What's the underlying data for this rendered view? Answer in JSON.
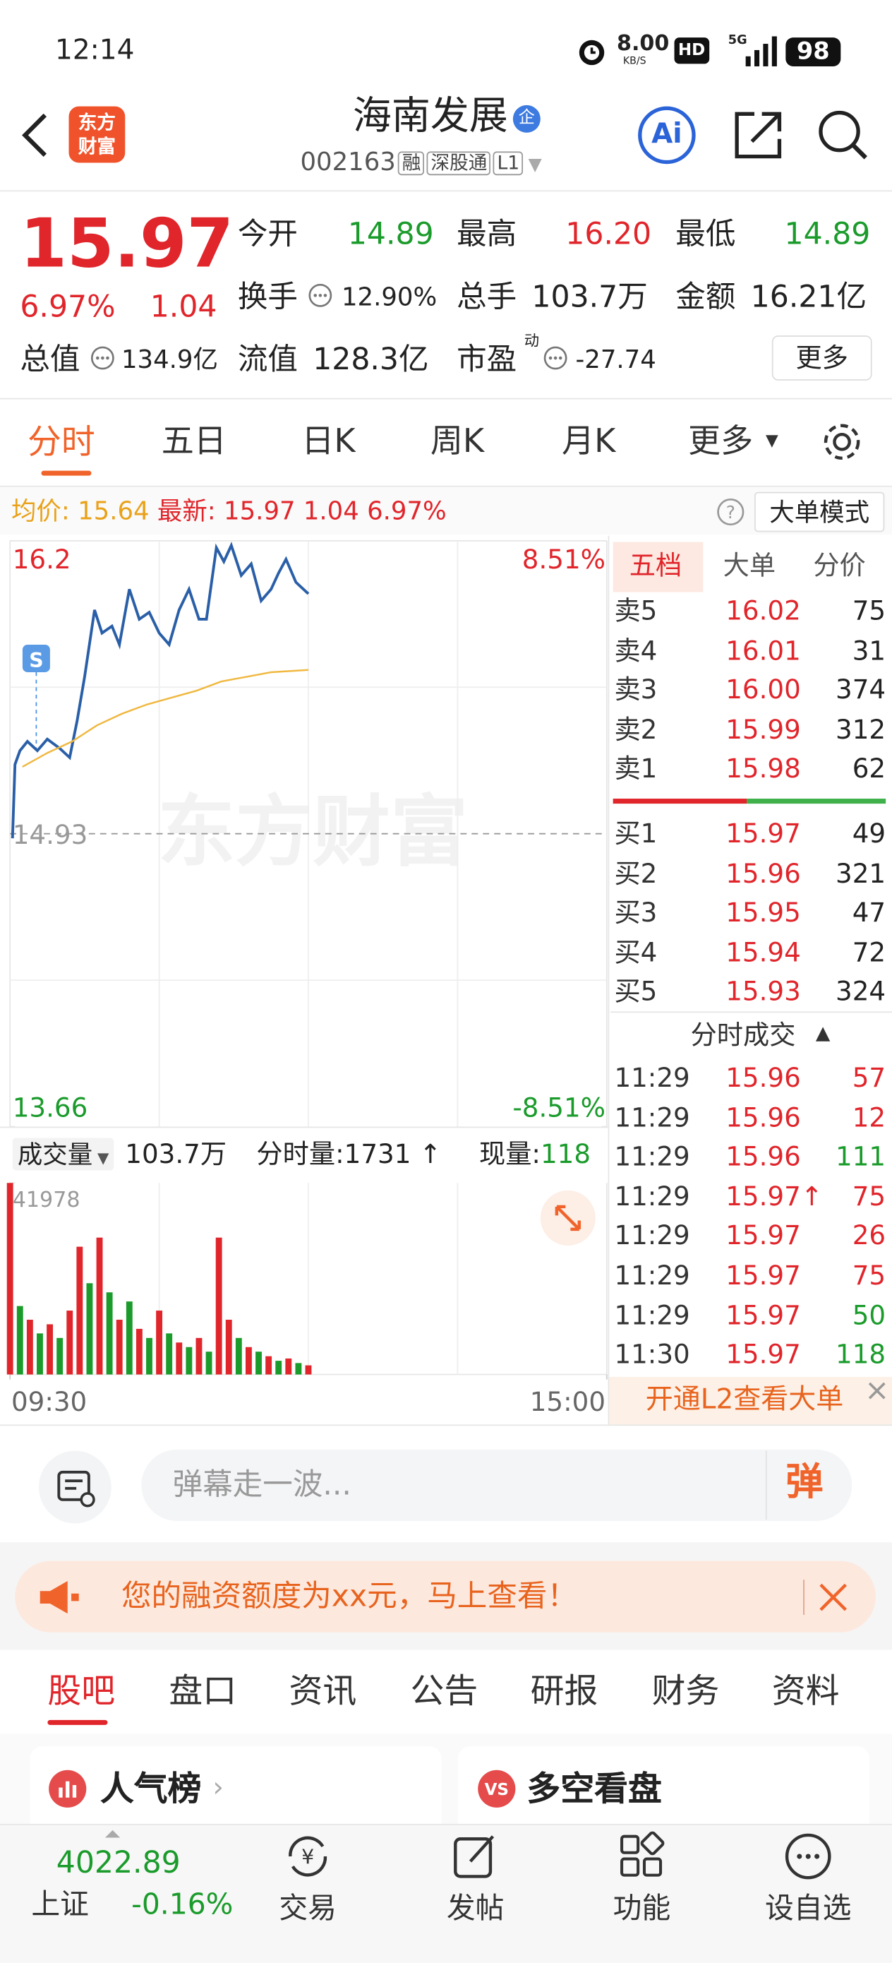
{
  "status_bar": {
    "time": "12:14",
    "net_speed": "8.00",
    "net_unit": "KB/S",
    "hd": "HD",
    "network": "5G",
    "battery": "98"
  },
  "header": {
    "logo": "东方财富",
    "title": "海南发展",
    "badge": "企",
    "code": "002163",
    "tags": [
      "融",
      "深股通",
      "L1"
    ],
    "ai": "Ai"
  },
  "quote": {
    "price": "15.97",
    "change_pct": "6.97%",
    "change": "1.04",
    "fields": [
      {
        "label": "今开",
        "value": "14.89"
      },
      {
        "label": "最高",
        "value": "16.20"
      },
      {
        "label": "最低",
        "value": "14.89"
      },
      {
        "label": "换手",
        "value": "12.90%"
      },
      {
        "label": "总手",
        "value": "103.7万"
      },
      {
        "label": "金额",
        "value": "16.21亿"
      },
      {
        "label": "总值",
        "value": "134.9亿"
      },
      {
        "label": "流值",
        "value": "128.3亿"
      },
      {
        "label": "市盈",
        "sup": "动",
        "value": "-27.74"
      }
    ],
    "more": "更多"
  },
  "tabs": [
    "分时",
    "五日",
    "日K",
    "周K",
    "月K",
    "更多"
  ],
  "info_bar": {
    "avg_label": "均价:",
    "avg": "15.64",
    "last_label": "最新:",
    "last": "15.97",
    "change": "1.04",
    "change_pct": "6.97%",
    "mode": "大单模式"
  },
  "watermark": "东方财富",
  "signal_marker": "S",
  "chart_data": [
    {
      "type": "line",
      "ylim": [
        13.66,
        16.2
      ],
      "yticks": [
        13.66,
        16.2
      ],
      "reference_line": 14.93,
      "y2lim": [
        -8.51,
        8.51
      ],
      "y2ticks": [
        {
          "value": -8.51,
          "label": "-8.51%"
        },
        {
          "value": 8.51,
          "label": "8.51%"
        }
      ],
      "xlim": [
        0,
        240
      ],
      "series": [
        {
          "color": "#2a5fa8",
          "x": [
            1,
            2,
            4,
            7,
            11,
            15,
            20,
            24,
            27,
            30,
            34,
            37,
            41,
            44,
            48,
            52,
            56,
            60,
            64,
            68,
            72,
            76,
            79,
            83,
            86,
            89,
            93,
            97,
            101,
            105,
            108,
            111,
            115,
            120
          ],
          "values": [
            14.91,
            15.23,
            15.29,
            15.33,
            15.29,
            15.34,
            15.3,
            15.26,
            15.42,
            15.61,
            15.9,
            15.8,
            15.83,
            15.75,
            15.99,
            15.86,
            15.89,
            15.8,
            15.75,
            15.9,
            15.99,
            15.86,
            15.86,
            16.17,
            16.11,
            16.18,
            16.05,
            16.1,
            15.94,
            15.99,
            16.06,
            16.12,
            16.02,
            15.97
          ]
        },
        {
          "color": "#f0b840",
          "x": [
            5,
            15,
            25,
            35,
            45,
            55,
            65,
            75,
            85,
            95,
            105,
            120
          ],
          "values": [
            15.22,
            15.28,
            15.33,
            15.4,
            15.45,
            15.49,
            15.52,
            15.55,
            15.59,
            15.61,
            15.63,
            15.64
          ]
        }
      ]
    },
    {
      "type": "bar",
      "ylim": [
        0,
        41978
      ],
      "yticks": [
        41978
      ],
      "xlim": [
        0,
        240
      ],
      "xticks": [
        {
          "value": 0,
          "label": "09:30"
        },
        {
          "value": 240,
          "label": "15:00"
        }
      ],
      "x": [
        0,
        4,
        8,
        12,
        16,
        20,
        24,
        28,
        32,
        36,
        40,
        44,
        48,
        52,
        56,
        60,
        64,
        68,
        72,
        76,
        80,
        84,
        88,
        92,
        96,
        100,
        104,
        108,
        112,
        116,
        120
      ],
      "values": [
        41978,
        15000,
        12000,
        9000,
        11000,
        8000,
        14000,
        28000,
        20000,
        30000,
        18000,
        12000,
        16000,
        10000,
        8000,
        14000,
        9000,
        7000,
        6000,
        8000,
        5000,
        30000,
        12000,
        8000,
        6000,
        5000,
        4000,
        3000,
        3500,
        2500,
        2000
      ],
      "colors": [
        "#e0252b",
        "#1a9b2b",
        "#e0252b",
        "#1a9b2b",
        "#e0252b",
        "#1a9b2b",
        "#e0252b",
        "#e0252b",
        "#1a9b2b",
        "#e0252b",
        "#1a9b2b",
        "#e0252b",
        "#1a9b2b",
        "#e0252b",
        "#1a9b2b",
        "#e0252b",
        "#1a9b2b",
        "#e0252b",
        "#1a9b2b",
        "#e0252b",
        "#1a9b2b",
        "#e0252b",
        "#e0252b",
        "#1a9b2b",
        "#e0252b",
        "#1a9b2b",
        "#e0252b",
        "#1a9b2b",
        "#e0252b",
        "#1a9b2b",
        "#e0252b"
      ]
    }
  ],
  "volume_bar": {
    "label": "成交量",
    "total": "103.7万",
    "minute_label": "分时量:",
    "minute_value": "1731",
    "current_label": "现量:",
    "current_value": "118"
  },
  "order_book": {
    "tabs": [
      "五档",
      "大单",
      "分价"
    ],
    "sells": [
      {
        "label": "卖5",
        "price": "16.02",
        "volume": "75"
      },
      {
        "label": "卖4",
        "price": "16.01",
        "volume": "31"
      },
      {
        "label": "卖3",
        "price": "16.00",
        "volume": "374"
      },
      {
        "label": "卖2",
        "price": "15.99",
        "volume": "312"
      },
      {
        "label": "卖1",
        "price": "15.98",
        "volume": "62"
      }
    ],
    "buys": [
      {
        "label": "买1",
        "price": "15.97",
        "volume": "49"
      },
      {
        "label": "买2",
        "price": "15.96",
        "volume": "321"
      },
      {
        "label": "买3",
        "price": "15.95",
        "volume": "47"
      },
      {
        "label": "买4",
        "price": "15.94",
        "volume": "72"
      },
      {
        "label": "买5",
        "price": "15.93",
        "volume": "324"
      }
    ]
  },
  "trades": {
    "title": "分时成交",
    "rows": [
      {
        "time": "11:29",
        "price": "15.96",
        "volume": "57",
        "color": "#e0252b"
      },
      {
        "time": "11:29",
        "price": "15.96",
        "volume": "12",
        "color": "#e0252b"
      },
      {
        "time": "11:29",
        "price": "15.96",
        "volume": "111",
        "color": "#1a9b2b"
      },
      {
        "time": "11:29",
        "price": "15.97↑",
        "volume": "75",
        "color": "#e0252b"
      },
      {
        "time": "11:29",
        "price": "15.97",
        "volume": "26",
        "color": "#e0252b"
      },
      {
        "time": "11:29",
        "price": "15.97",
        "volume": "75",
        "color": "#e0252b"
      },
      {
        "time": "11:29",
        "price": "15.97",
        "volume": "50",
        "color": "#1a9b2b"
      },
      {
        "time": "11:30",
        "price": "15.97",
        "volume": "118",
        "color": "#1a9b2b"
      }
    ],
    "l2": "开通L2查看大单"
  },
  "comment": {
    "placeholder": "弹幕走一波...",
    "button": "弹"
  },
  "promo": "您的融资额度为xx元，马上查看！",
  "bottom_tabs": [
    "股吧",
    "盘口",
    "资讯",
    "公告",
    "研报",
    "财务",
    "资料"
  ],
  "cards": [
    "人气榜",
    "多空看盘"
  ],
  "nav": {
    "index_value": "4022.89",
    "index_name": "上证",
    "index_change": "-0.16%",
    "items": [
      "交易",
      "发帖",
      "功能",
      "设自选"
    ]
  }
}
